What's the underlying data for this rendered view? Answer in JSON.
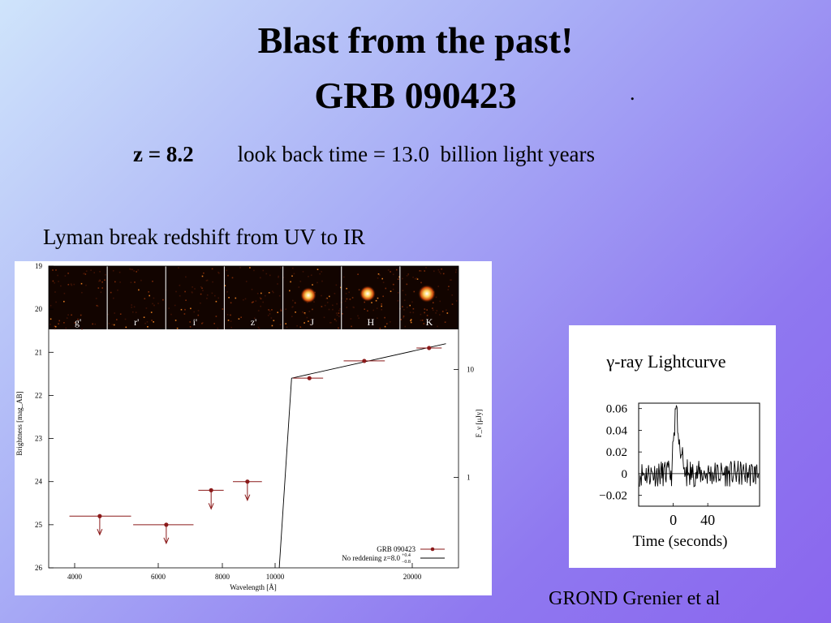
{
  "slide": {
    "title_line1": "Blast from the past!",
    "title_line2": "GRB 090423",
    "dot": ".",
    "redshift": "z = 8.2",
    "lookback": "look back time = 13.0  billion light years",
    "subtitle": "Lyman break redshift from UV to IR",
    "credit": "GROND  Grenier et al"
  },
  "colors": {
    "point": "#8b1a1a",
    "line": "#000000"
  },
  "chart_data": [
    {
      "type": "scatter",
      "xlabel": "Wavelength [Å]",
      "ylabel": "Brightness [mag_AB]",
      "y2label": "F_ν [μJy]",
      "xlim": [
        3000,
        25500
      ],
      "ylim": [
        26,
        19
      ],
      "x_ticks": [
        4000,
        6000,
        8000,
        10000,
        20000
      ],
      "y_ticks": [
        19,
        20,
        21,
        22,
        23,
        24,
        25,
        26
      ],
      "y2_ticks": [
        {
          "label": "10",
          "mag": 21.4
        },
        {
          "label": "1",
          "mag": 23.9
        }
      ],
      "bands": [
        "g'",
        "r'",
        "i'",
        "z'",
        "J",
        "H",
        "K"
      ],
      "series": [
        {
          "name": "GRB 090423",
          "points": [
            {
              "x": 4600,
              "y": 24.8,
              "xerr": [
                3850,
                5350
              ],
              "upper_limit": true
            },
            {
              "x": 6250,
              "y": 25.0,
              "xerr": [
                5400,
                7100
              ],
              "upper_limit": true
            },
            {
              "x": 7650,
              "y": 24.2,
              "xerr": [
                7250,
                8050
              ],
              "upper_limit": true
            },
            {
              "x": 8950,
              "y": 24.0,
              "xerr": [
                8400,
                9500
              ],
              "upper_limit": true
            },
            {
              "x": 12500,
              "y": 21.6,
              "xerr": [
                11300,
                13500
              ],
              "upper_limit": false
            },
            {
              "x": 16500,
              "y": 21.2,
              "xerr": [
                15000,
                18000
              ],
              "upper_limit": false
            },
            {
              "x": 22000,
              "y": 20.9,
              "xerr": [
                20500,
                23500
              ],
              "upper_limit": false
            }
          ]
        },
        {
          "name": "No reddening z=8.0",
          "name_sup": "+0.4",
          "name_sub": "−0.8",
          "line": [
            [
              10300,
              26
            ],
            [
              11200,
              21.6
            ],
            [
              24000,
              20.8
            ]
          ]
        }
      ]
    },
    {
      "type": "line",
      "title": "γ-ray Lightcurve",
      "xlabel": "Time (seconds)",
      "x_ticks": [
        0,
        40
      ],
      "y_ticks": [
        "0.06",
        "0.04",
        "0.02",
        "0",
        "−0.02"
      ],
      "xlim": [
        -40,
        100
      ],
      "ylim": [
        -0.03,
        0.065
      ],
      "peak_time": 2,
      "peak_rate": 0.057
    }
  ]
}
